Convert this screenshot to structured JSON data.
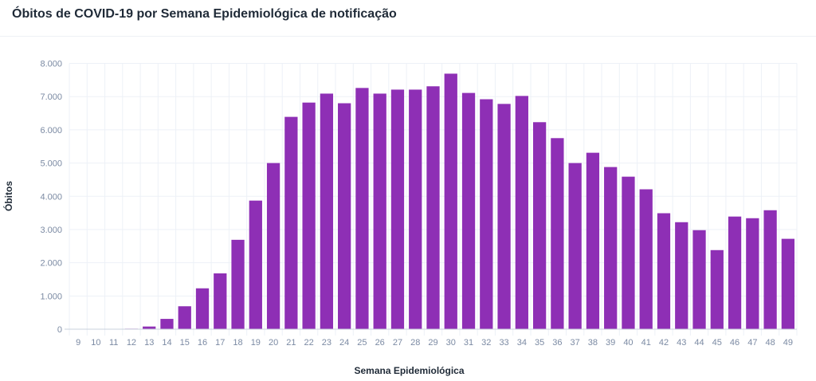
{
  "title": "Óbitos de COVID-19 por Semana Epidemiológica de notificação",
  "chart_data": {
    "type": "bar",
    "title": "Óbitos de COVID-19 por Semana Epidemiológica de notificação",
    "xlabel": "Semana Epidemiológica",
    "ylabel": "Óbitos",
    "ylim": [
      0,
      8000
    ],
    "yticks": [
      0,
      1000,
      2000,
      3000,
      4000,
      5000,
      6000,
      7000,
      8000
    ],
    "ytick_labels": [
      "0",
      "1.000",
      "2.000",
      "3.000",
      "4.000",
      "5.000",
      "6.000",
      "7.000",
      "8.000"
    ],
    "grid": true,
    "color": "#8e2fb5",
    "categories": [
      "9",
      "10",
      "11",
      "12",
      "13",
      "14",
      "15",
      "16",
      "17",
      "18",
      "19",
      "20",
      "21",
      "22",
      "23",
      "24",
      "25",
      "26",
      "27",
      "28",
      "29",
      "30",
      "31",
      "32",
      "33",
      "34",
      "35",
      "36",
      "37",
      "38",
      "39",
      "40",
      "41",
      "42",
      "43",
      "44",
      "45",
      "46",
      "47",
      "48",
      "49"
    ],
    "values": [
      0,
      1,
      2,
      15,
      80,
      310,
      690,
      1230,
      1680,
      2690,
      3870,
      5000,
      6390,
      6820,
      7090,
      6800,
      7260,
      7090,
      7210,
      7210,
      7310,
      7690,
      7110,
      6920,
      6780,
      7020,
      6230,
      5750,
      5000,
      5310,
      4880,
      4590,
      4210,
      3490,
      3220,
      2980,
      2380,
      3390,
      3340,
      3580,
      2720
    ]
  }
}
